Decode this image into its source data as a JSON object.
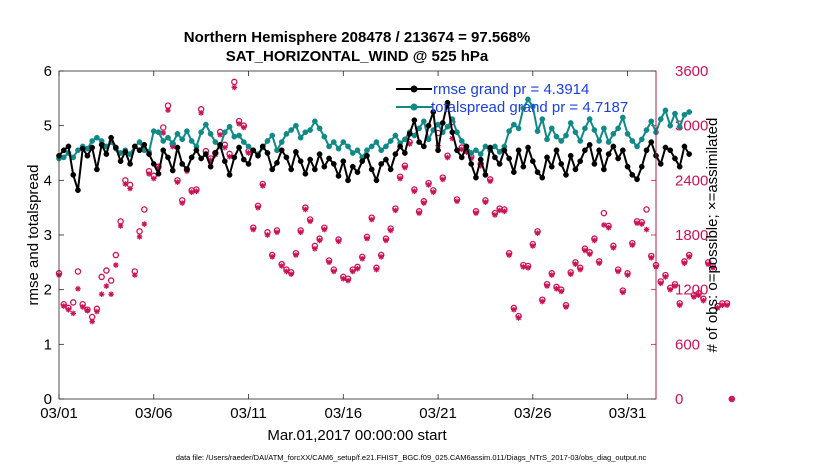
{
  "chart_data": {
    "type": "line",
    "title_line1": "Northern Hemisphere 208478 / 213674 = 97.568%",
    "title_line2": "SAT_HORIZONTAL_WIND @ 525 hPa",
    "xlabel": "Mar.01,2017 00:00:00 start",
    "ylabel_left": "rmse and totalspread",
    "ylabel_right": "# of obs: o=possible; ×=assimilated",
    "footnote": "data file: /Users/raeder/DAI/ATM_forcXX/CAM6_setup/f.e21.FHIST_BGC.f09_025.CAM6assim.011/Diags_NTrS_2017-03/obs_diag_output.nc",
    "x_tick_labels": [
      "03/01",
      "03/06",
      "03/11",
      "03/16",
      "03/21",
      "03/26",
      "03/31"
    ],
    "x_tick_days": [
      0,
      5,
      10,
      15,
      20,
      25,
      30
    ],
    "xlim_days": [
      0,
      31.5
    ],
    "ylim_left": [
      0,
      6
    ],
    "y_left_ticks": [
      "0",
      "1",
      "2",
      "3",
      "4",
      "5",
      "6"
    ],
    "ylim_right": [
      0,
      3600
    ],
    "y_right_ticks": [
      "0",
      "600",
      "1200",
      "1800",
      "2400",
      "3000",
      "3600"
    ],
    "x_step_days": 0.25,
    "colors": {
      "rmse": "#000000",
      "totalspread": "#0f8a87",
      "obs": "#cc1155",
      "legend_text": "#1a3fe0",
      "right_axis": "#cc1155"
    },
    "legend": {
      "position": "top-right",
      "entries": [
        "rmse grand pr = 4.3914",
        "totalspread grand pr = 4.7187"
      ]
    },
    "series": [
      {
        "name": "rmse grand pr = 4.3914",
        "axis": "left",
        "values": [
          4.45,
          4.55,
          4.62,
          4.1,
          3.82,
          4.58,
          4.45,
          4.6,
          4.2,
          4.65,
          4.48,
          4.78,
          4.6,
          4.35,
          4.52,
          4.3,
          4.62,
          4.55,
          4.65,
          4.48,
          4.3,
          4.12,
          4.55,
          4.42,
          4.18,
          4.6,
          4.3,
          4.2,
          4.42,
          4.55,
          4.4,
          4.48,
          4.25,
          4.5,
          4.65,
          4.35,
          4.1,
          4.42,
          4.6,
          4.38,
          4.3,
          4.55,
          4.45,
          4.62,
          4.5,
          4.2,
          4.32,
          4.55,
          4.42,
          4.2,
          4.52,
          4.35,
          4.12,
          4.38,
          4.2,
          4.48,
          4.25,
          4.4,
          4.3,
          4.08,
          4.35,
          4.0,
          4.25,
          4.15,
          4.35,
          4.45,
          4.2,
          4.0,
          4.3,
          4.38,
          4.2,
          4.48,
          4.62,
          4.5,
          4.85,
          5.1,
          4.7,
          4.62,
          5.0,
          5.25,
          4.55,
          5.05,
          5.42,
          4.88,
          4.55,
          4.42,
          4.62,
          4.3,
          4.05,
          4.38,
          4.1,
          4.6,
          4.42,
          4.3,
          4.55,
          4.4,
          4.15,
          4.55,
          4.25,
          4.6,
          4.35,
          4.15,
          4.05,
          4.42,
          4.25,
          4.55,
          4.3,
          4.1,
          4.45,
          4.2,
          4.35,
          4.55,
          4.65,
          4.3,
          4.55,
          4.2,
          4.48,
          4.62,
          4.4,
          4.55,
          4.25,
          4.1,
          4.02,
          4.25,
          4.55,
          4.7,
          4.45,
          4.3,
          4.6,
          4.55,
          4.4,
          4.25,
          4.62,
          4.48
        ]
      },
      {
        "name": "totalspread grand pr = 4.7187",
        "axis": "left",
        "values": [
          4.4,
          4.42,
          4.5,
          4.42,
          4.55,
          4.62,
          4.58,
          4.72,
          4.78,
          4.72,
          4.62,
          4.7,
          4.58,
          4.5,
          4.55,
          4.48,
          4.62,
          4.7,
          4.55,
          4.52,
          4.9,
          4.88,
          4.72,
          4.78,
          4.68,
          4.85,
          4.75,
          4.9,
          4.72,
          4.62,
          4.88,
          5.02,
          4.85,
          4.7,
          4.62,
          4.88,
          4.98,
          4.8,
          4.82,
          4.7,
          4.62,
          4.55,
          4.48,
          4.6,
          4.72,
          4.82,
          4.55,
          4.7,
          4.85,
          4.92,
          5.0,
          4.78,
          4.88,
          4.92,
          5.08,
          4.95,
          4.8,
          4.62,
          4.7,
          4.58,
          4.7,
          4.62,
          4.5,
          4.55,
          4.42,
          4.55,
          4.62,
          4.7,
          4.55,
          4.62,
          4.72,
          4.82,
          4.68,
          4.75,
          4.88,
          4.82,
          4.95,
          5.08,
          4.75,
          4.92,
          5.02,
          4.88,
          4.98,
          5.12,
          4.88,
          4.72,
          4.62,
          4.5,
          4.55,
          4.48,
          4.62,
          4.55,
          4.62,
          4.52,
          4.62,
          4.9,
          5.02,
          4.95,
          5.32,
          5.48,
          5.35,
          4.9,
          5.12,
          4.75,
          4.95,
          4.8,
          4.72,
          4.82,
          5.05,
          4.88,
          4.72,
          4.95,
          5.12,
          4.92,
          4.72,
          4.95,
          4.7,
          4.85,
          4.95,
          5.15,
          4.85,
          4.72,
          4.62,
          4.75,
          4.92,
          5.08,
          4.88,
          5.12,
          5.28,
          5.0,
          5.22,
          4.98,
          5.2,
          5.25
        ]
      },
      {
        "name": "o",
        "axis": "right",
        "values": [
          1380,
          1040,
          1000,
          1060,
          1400,
          1040,
          980,
          900,
          990,
          1340,
          1410,
          1300,
          1580,
          1950,
          2400,
          2350,
          1400,
          1840,
          2080,
          2500,
          2450,
          2550,
          2980,
          3220,
          2800,
          2400,
          2180,
          2520,
          2290,
          2300,
          3180,
          2720,
          2640,
          2700,
          2930,
          2790,
          2690,
          3480,
          3050,
          3000,
          2720,
          1880,
          2120,
          2360,
          1830,
          1580,
          1850,
          1480,
          1420,
          1390,
          1600,
          1850,
          2100,
          1970,
          1680,
          1760,
          1880,
          1520,
          1420,
          1750,
          1340,
          1320,
          1420,
          1450,
          1560,
          1780,
          1990,
          1440,
          1580,
          1760,
          1870,
          2090,
          2440,
          2560,
          2820,
          2300,
          2060,
          2170,
          2370,
          2290,
          2920,
          2430,
          2670,
          3040,
          2190,
          2760,
          2730,
          2660,
          2060,
          2580,
          2180,
          2410,
          2040,
          2090,
          2080,
          1600,
          1000,
          910,
          1470,
          1460,
          1700,
          1840,
          1090,
          1260,
          1380,
          1230,
          1200,
          1030,
          1390,
          1500,
          1440,
          1650,
          1610,
          1760,
          1510,
          2040,
          1900,
          1680,
          1420,
          1190,
          1380,
          1710,
          1950,
          1940,
          2080,
          1570,
          1470,
          1290,
          1360,
          1220,
          1260,
          1050,
          1510,
          1580,
          1140,
          1160,
          1100,
          1500,
          1460,
          1020,
          1050,
          1050,
          0
        ]
      },
      {
        "name": "×",
        "axis": "right",
        "values": [
          1360,
          1020,
          980,
          940,
          1210,
          1010,
          970,
          850,
          960,
          1150,
          1240,
          1150,
          1470,
          1900,
          2360,
          2310,
          1360,
          1780,
          1920,
          2470,
          2420,
          2540,
          2920,
          3170,
          2770,
          2380,
          2150,
          2500,
          2270,
          2280,
          3140,
          2690,
          2620,
          2680,
          2900,
          2760,
          2660,
          3420,
          3020,
          2980,
          2700,
          1860,
          2100,
          2340,
          1800,
          1560,
          1830,
          1460,
          1400,
          1370,
          1580,
          1830,
          2080,
          1950,
          1650,
          1740,
          1860,
          1500,
          1400,
          1730,
          1320,
          1300,
          1400,
          1430,
          1540,
          1760,
          1970,
          1420,
          1560,
          1740,
          1850,
          2070,
          2420,
          2540,
          2800,
          2280,
          2040,
          2150,
          2350,
          2270,
          2780,
          2410,
          2650,
          2860,
          2170,
          2740,
          2710,
          2640,
          2040,
          2560,
          2160,
          2390,
          2020,
          2070,
          2060,
          1580,
          980,
          890,
          1450,
          1440,
          1680,
          1820,
          1070,
          1240,
          1360,
          1210,
          1180,
          1010,
          1370,
          1480,
          1420,
          1630,
          1590,
          1740,
          1490,
          1910,
          1880,
          1660,
          1400,
          1170,
          1360,
          1690,
          1930,
          1920,
          1860,
          1550,
          1450,
          1270,
          1340,
          1200,
          1240,
          1030,
          1490,
          1560,
          1120,
          1140,
          1080,
          1480,
          1440,
          1000,
          1030,
          1030,
          0
        ]
      }
    ]
  }
}
